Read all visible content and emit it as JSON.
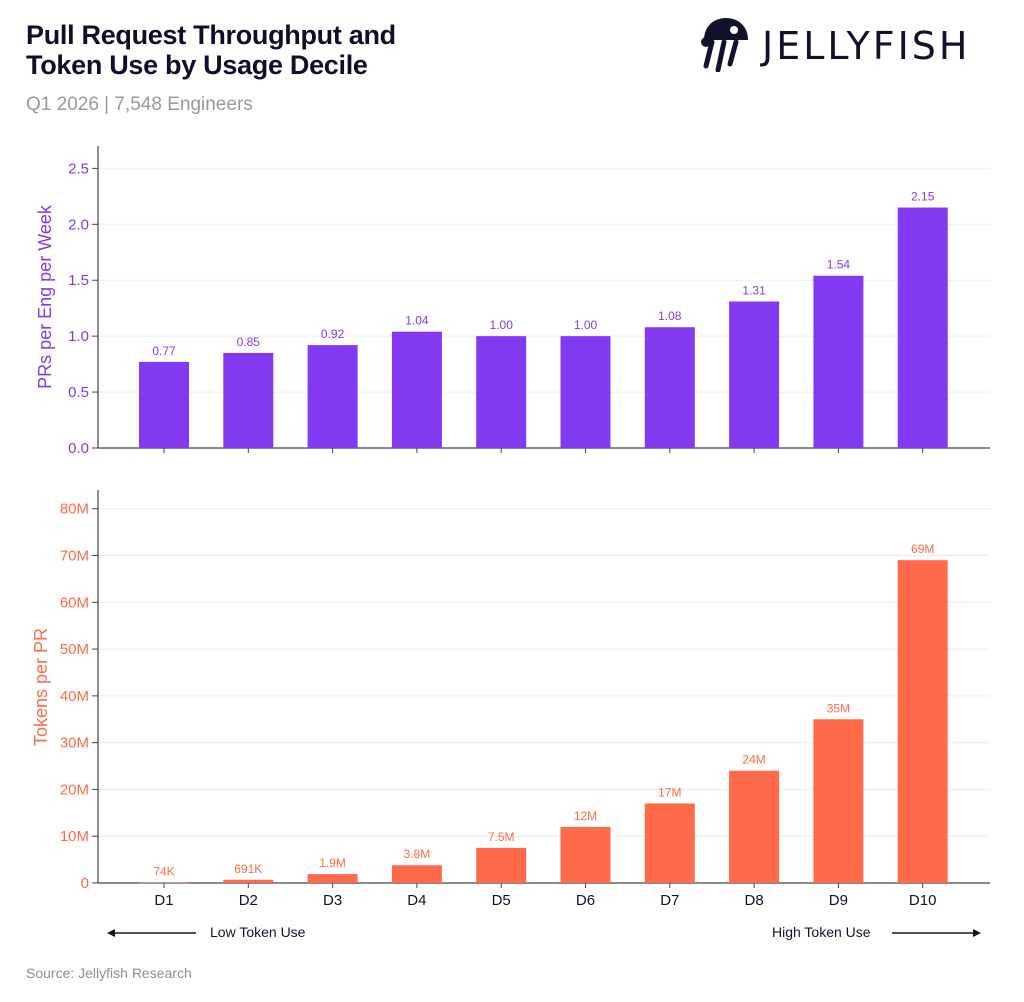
{
  "header": {
    "title_line1": "Pull Request Throughput and",
    "title_line2": "Token Use by Usage Decile",
    "subtitle": "Q1 2026 | 7,548 Engineers",
    "logo_text": "JELLYFISH",
    "logo_icon": "jellyfish-icon"
  },
  "footer": {
    "left_label": "Low Token Use",
    "right_label": "High Token Use",
    "left_arrow_icon": "left-arrow-icon",
    "right_arrow_icon": "right-arrow-icon",
    "source": "Source: Jellyfish Research"
  },
  "colors": {
    "purple": "#8339f0",
    "orange": "#ff6a4a",
    "text": "#12122b",
    "muted": "#9a9a9a"
  },
  "chart_data": [
    {
      "type": "bar",
      "categories": [
        "D1",
        "D2",
        "D3",
        "D4",
        "D5",
        "D6",
        "D7",
        "D8",
        "D9",
        "D10"
      ],
      "values": [
        0.77,
        0.85,
        0.92,
        1.04,
        1.0,
        1.0,
        1.08,
        1.31,
        1.54,
        2.15
      ],
      "value_labels": [
        "0.77",
        "0.85",
        "0.92",
        "1.04",
        "1.00",
        "1.00",
        "1.08",
        "1.31",
        "1.54",
        "2.15"
      ],
      "ylabel": "PRs per Eng per Week",
      "ylim": [
        0,
        2.7
      ],
      "yticks": [
        0,
        0.5,
        1.0,
        1.5,
        2.0,
        2.5
      ],
      "ytick_labels": [
        "0.0",
        "0.5",
        "1.0",
        "1.5",
        "2.0",
        "2.5"
      ],
      "grid": true,
      "color": "#8339f0"
    },
    {
      "type": "bar",
      "categories": [
        "D1",
        "D2",
        "D3",
        "D4",
        "D5",
        "D6",
        "D7",
        "D8",
        "D9",
        "D10"
      ],
      "values": [
        74000,
        691000,
        1900000,
        3800000,
        7500000,
        12000000,
        17000000,
        24000000,
        35000000,
        69000000
      ],
      "value_labels": [
        "74K",
        "691K",
        "1.9M",
        "3.8M",
        "7.5M",
        "12M",
        "17M",
        "24M",
        "35M",
        "69M"
      ],
      "ylabel": "Tokens per PR",
      "ylim": [
        0,
        84000000
      ],
      "yticks": [
        0,
        10000000,
        20000000,
        30000000,
        40000000,
        50000000,
        60000000,
        70000000,
        80000000
      ],
      "ytick_labels": [
        "0",
        "10M",
        "20M",
        "30M",
        "40M",
        "50M",
        "60M",
        "70M",
        "80M"
      ],
      "xtick_labels": [
        "D1",
        "D2",
        "D3",
        "D4",
        "D5",
        "D6",
        "D7",
        "D8",
        "D9",
        "D10"
      ],
      "grid": true,
      "color": "#ff6a4a"
    }
  ]
}
